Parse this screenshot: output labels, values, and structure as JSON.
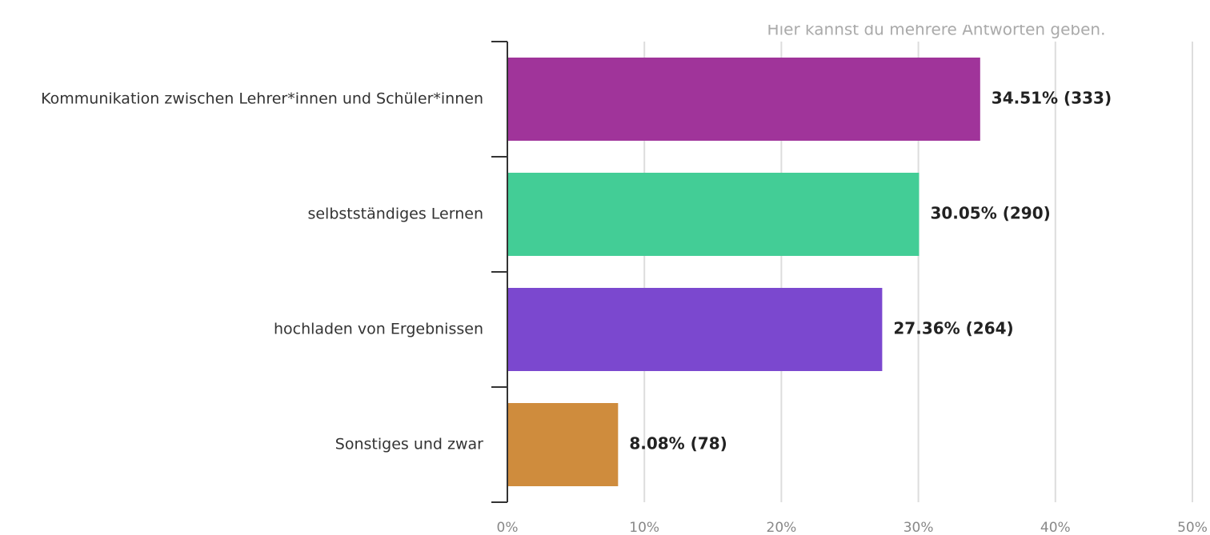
{
  "chart_data": {
    "type": "bar",
    "orientation": "horizontal",
    "subtitle": "Hier kannst du mehrere Antworten geben.",
    "categories": [
      "Kommunikation zwischen Lehrer*innen und Schüler*innen",
      "selbstständiges Lernen",
      "hochladen von Ergebnissen",
      "Sonstiges und zwar"
    ],
    "values": [
      34.51,
      30.05,
      27.36,
      8.08
    ],
    "value_labels": [
      "34.51% (333)",
      "30.05% (290)",
      "27.36% (264)",
      "8.08% (78)"
    ],
    "colors": [
      "#a0349a",
      "#43cd96",
      "#7b48cf",
      "#cf8c3d"
    ],
    "xlim": [
      0,
      50
    ],
    "xticks": [
      {
        "value": 0,
        "label": "0%"
      },
      {
        "value": 10,
        "label": "10%"
      },
      {
        "value": 20,
        "label": "20%"
      },
      {
        "value": 30,
        "label": "30%"
      },
      {
        "value": 40,
        "label": "40%"
      },
      {
        "value": 50,
        "label": "50%"
      }
    ],
    "grid": true
  }
}
